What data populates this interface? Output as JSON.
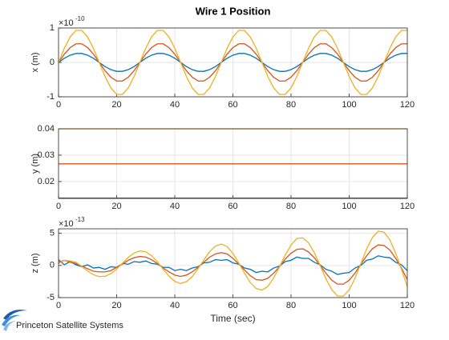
{
  "chart_data": [
    {
      "type": "line",
      "title": "Wire 1 Position",
      "ylabel": "x (m)",
      "y_multiplier": {
        "base": "×10",
        "exponent": "-10"
      },
      "x": [
        0,
        2,
        4,
        6,
        8,
        10,
        12,
        14,
        16,
        18,
        20,
        22,
        24,
        26,
        28,
        30,
        32,
        34,
        36,
        38,
        40,
        42,
        44,
        46,
        48,
        50,
        52,
        54,
        56,
        58,
        60,
        62,
        64,
        66,
        68,
        70,
        72,
        74,
        76,
        78,
        80,
        82,
        84,
        86,
        88,
        90,
        92,
        94,
        96,
        98,
        100,
        102,
        104,
        106,
        108,
        110,
        112,
        114,
        116,
        118,
        120
      ],
      "xlim": [
        0,
        120
      ],
      "xticks": [
        0,
        20,
        40,
        60,
        80,
        100,
        120
      ],
      "ylim": [
        -1,
        1
      ],
      "yticks": [
        -1,
        0,
        1
      ],
      "grid": true,
      "series": [
        {
          "color": "#0072BD",
          "values": [
            0,
            0.12,
            0.21,
            0.26,
            0.26,
            0.21,
            0.12,
            0,
            -0.12,
            -0.21,
            -0.26,
            -0.26,
            -0.21,
            -0.12,
            0,
            0.12,
            0.21,
            0.26,
            0.26,
            0.21,
            0.12,
            0,
            -0.12,
            -0.21,
            -0.26,
            -0.26,
            -0.21,
            -0.12,
            0,
            0.12,
            0.21,
            0.26,
            0.26,
            0.21,
            0.12,
            0,
            -0.12,
            -0.21,
            -0.26,
            -0.26,
            -0.21,
            -0.12,
            0,
            0.12,
            0.21,
            0.26,
            0.26,
            0.21,
            0.12,
            0,
            -0.12,
            -0.21,
            -0.26,
            -0.26,
            -0.21,
            -0.12,
            0,
            0.12,
            0.21,
            0.26,
            0.26
          ]
        },
        {
          "color": "#D95319",
          "values": [
            0,
            0.24,
            0.43,
            0.54,
            0.54,
            0.43,
            0.24,
            0,
            -0.24,
            -0.43,
            -0.54,
            -0.54,
            -0.43,
            -0.24,
            0,
            0.24,
            0.43,
            0.54,
            0.54,
            0.43,
            0.24,
            0,
            -0.24,
            -0.43,
            -0.54,
            -0.54,
            -0.43,
            -0.24,
            0,
            0.24,
            0.43,
            0.54,
            0.54,
            0.43,
            0.24,
            0,
            -0.24,
            -0.43,
            -0.54,
            -0.54,
            -0.43,
            -0.24,
            0,
            0.24,
            0.43,
            0.54,
            0.54,
            0.43,
            0.24,
            0,
            -0.24,
            -0.43,
            -0.54,
            -0.54,
            -0.43,
            -0.24,
            0,
            0.24,
            0.43,
            0.54,
            0.54
          ]
        },
        {
          "color": "#EDB120",
          "values": [
            0,
            0.41,
            0.74,
            0.93,
            0.93,
            0.74,
            0.41,
            0,
            -0.41,
            -0.74,
            -0.93,
            -0.93,
            -0.74,
            -0.41,
            0,
            0.41,
            0.74,
            0.93,
            0.93,
            0.74,
            0.41,
            0,
            -0.41,
            -0.74,
            -0.93,
            -0.93,
            -0.74,
            -0.41,
            0,
            0.41,
            0.74,
            0.93,
            0.93,
            0.74,
            0.41,
            0,
            -0.41,
            -0.74,
            -0.93,
            -0.93,
            -0.74,
            -0.41,
            0,
            0.41,
            0.74,
            0.93,
            0.93,
            0.74,
            0.41,
            0,
            -0.41,
            -0.74,
            -0.93,
            -0.93,
            -0.74,
            -0.41,
            0,
            0.41,
            0.74,
            0.93,
            0.93
          ]
        }
      ]
    },
    {
      "type": "line",
      "ylabel": "y (m)",
      "x": [
        0,
        120
      ],
      "xlim": [
        0,
        120
      ],
      "xticks": [
        0,
        20,
        40,
        60,
        80,
        100,
        120
      ],
      "ylim": [
        0.0136,
        0.04
      ],
      "yticks": [
        0.02,
        0.03,
        0.04
      ],
      "grid": true,
      "series": [
        {
          "color": "#0072BD",
          "values": [
            0.0137,
            0.0137
          ]
        },
        {
          "color": "#D95319",
          "values": [
            0.0267,
            0.0267
          ]
        },
        {
          "color": "#EDB120",
          "values": [
            0.04,
            0.04
          ]
        }
      ]
    },
    {
      "type": "line",
      "ylabel": "z (m)",
      "xlabel": "Time (sec)",
      "y_multiplier": {
        "base": "×10",
        "exponent": "-13"
      },
      "x": [
        0,
        2,
        4,
        6,
        8,
        10,
        12,
        14,
        16,
        18,
        20,
        22,
        24,
        26,
        28,
        30,
        32,
        34,
        36,
        38,
        40,
        42,
        44,
        46,
        48,
        50,
        52,
        54,
        56,
        58,
        60,
        62,
        64,
        66,
        68,
        70,
        72,
        74,
        76,
        78,
        80,
        82,
        84,
        86,
        88,
        90,
        92,
        94,
        96,
        98,
        100,
        102,
        104,
        106,
        108,
        110,
        112,
        114,
        116,
        118,
        120
      ],
      "xlim": [
        0,
        120
      ],
      "xticks": [
        0,
        20,
        40,
        60,
        80,
        100,
        120
      ],
      "ylim": [
        -5,
        5.7
      ],
      "yticks": [
        -5,
        0,
        5
      ],
      "grid": true,
      "series": [
        {
          "color": "#0072BD",
          "values": [
            0.9,
            0.1,
            0.6,
            0.1,
            -0.2,
            0.1,
            -0.4,
            -0.3,
            -0.6,
            -0.2,
            -0.3,
            0.3,
            0.2,
            0.6,
            0.5,
            0.7,
            0.3,
            0.2,
            -0.3,
            -0.3,
            -0.8,
            -0.6,
            -0.8,
            -0.4,
            -0.2,
            0.4,
            0.5,
            0.9,
            0.8,
            0.9,
            0.4,
            0.2,
            -0.4,
            -0.6,
            -1.1,
            -0.9,
            -1.0,
            -0.4,
            -0.1,
            0.6,
            0.8,
            1.3,
            1.1,
            1.1,
            0.5,
            0.1,
            -0.6,
            -0.9,
            -1.4,
            -1.2,
            -1.1,
            -0.4,
            0,
            0.8,
            1.0,
            1.5,
            1.3,
            1.2,
            0.5,
            0.1,
            -0.8
          ]
        },
        {
          "color": "#D95319",
          "values": [
            0.5,
            0.8,
            0.5,
            0.3,
            -0.1,
            -0.5,
            -0.9,
            -1.0,
            -1.0,
            -0.8,
            -0.3,
            0.2,
            0.8,
            1.2,
            1.4,
            1.3,
            0.9,
            0.3,
            -0.4,
            -1.0,
            -1.5,
            -1.7,
            -1.5,
            -1.0,
            -0.3,
            0.5,
            1.3,
            1.8,
            2.0,
            1.8,
            1.1,
            0.2,
            -0.7,
            -1.6,
            -2.2,
            -2.3,
            -2.0,
            -1.2,
            -0.2,
            1.0,
            1.9,
            2.5,
            2.6,
            2.1,
            1.2,
            0,
            -1.2,
            -2.3,
            -2.9,
            -2.9,
            -2.3,
            -1.2,
            0.2,
            1.5,
            2.6,
            3.2,
            3.1,
            2.4,
            1.1,
            -0.4,
            -2.2
          ]
        },
        {
          "color": "#EDB120",
          "values": [
            0.3,
            0.8,
            0.7,
            0.49,
            -0.17,
            -0.85,
            -1.43,
            -1.73,
            -1.68,
            -1.28,
            -0.55,
            0.35,
            1.25,
            1.93,
            2.26,
            2.13,
            1.52,
            0.57,
            -0.59,
            -1.66,
            -2.48,
            -2.8,
            -2.53,
            -1.74,
            -0.51,
            0.87,
            2.16,
            3.02,
            3.33,
            2.92,
            1.88,
            0.39,
            -1.2,
            -2.67,
            -3.59,
            -3.82,
            -3.27,
            -1.96,
            -0.25,
            1.62,
            3.18,
            4.19,
            4.3,
            3.53,
            2.0,
            0,
            -2.07,
            -3.77,
            -4.75,
            -4.77,
            -3.8,
            -1.98,
            0.26,
            2.56,
            4.35,
            5.33,
            5.19,
            3.98,
            1.91,
            -0.62,
            -3.3
          ]
        }
      ]
    }
  ],
  "logo": "Princeton Satellite Systems"
}
